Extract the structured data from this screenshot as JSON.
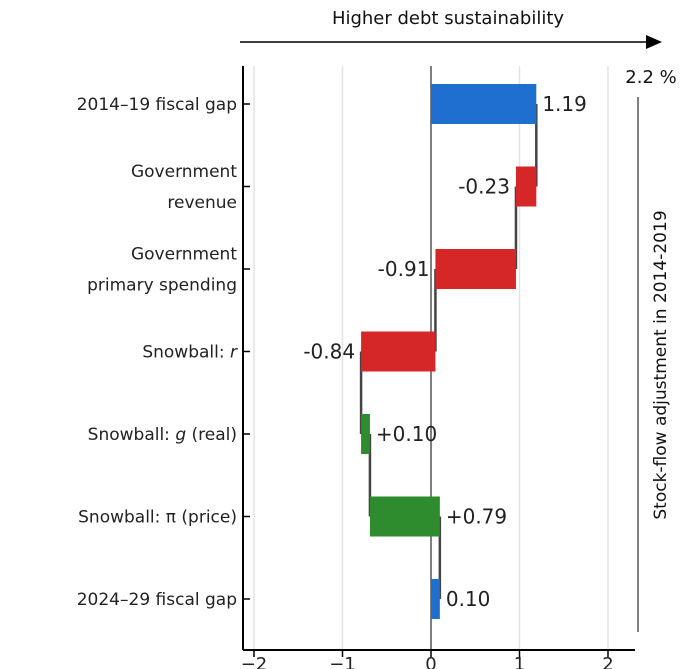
{
  "chart_data": {
    "type": "bar",
    "orientation": "horizontal-waterfall",
    "title": "Higher debt sustainability",
    "side_label": "Stock-flow adjustment in 2014-2019",
    "side_value_label": "2.2 %",
    "xlim": [
      -2.2,
      2.35
    ],
    "x_ticks": [
      -2,
      -1,
      0,
      1,
      2
    ],
    "x_tick_labels": [
      "−2",
      "−1",
      "0",
      "1",
      "2"
    ],
    "grid": "vertical",
    "categories": [
      {
        "lines": [
          "2014–19 fiscal gap"
        ],
        "italic": null
      },
      {
        "lines": [
          "Government",
          "revenue"
        ],
        "italic": null
      },
      {
        "lines": [
          "Government",
          "primary spending"
        ],
        "italic": null
      },
      {
        "lines": [
          "Snowball: r"
        ],
        "italic": "r"
      },
      {
        "lines": [
          "Snowball: g (real)"
        ],
        "italic": "g"
      },
      {
        "lines": [
          "Snowball: π (price)"
        ],
        "italic": null
      },
      {
        "lines": [
          "2024–29 fiscal gap"
        ],
        "italic": null
      }
    ],
    "bars": [
      {
        "start": 0.0,
        "end": 1.19,
        "value": 1.19,
        "label": "1.19",
        "color": "#1f6fd1"
      },
      {
        "start": 1.19,
        "end": 0.96,
        "value": -0.23,
        "label": "-0.23",
        "color": "#d62728"
      },
      {
        "start": 0.96,
        "end": 0.05,
        "value": -0.91,
        "label": "-0.91",
        "color": "#d62728"
      },
      {
        "start": 0.05,
        "end": -0.79,
        "value": -0.84,
        "label": "-0.84",
        "color": "#d62728"
      },
      {
        "start": -0.79,
        "end": -0.69,
        "value": 0.1,
        "label": "+0.10",
        "color": "#2e8b2e"
      },
      {
        "start": -0.69,
        "end": 0.1,
        "value": 0.79,
        "label": "+0.79",
        "color": "#2e8b2e"
      },
      {
        "start": 0.0,
        "end": 0.1,
        "value": 0.1,
        "label": "0.10",
        "color": "#1f6fd1"
      }
    ],
    "colors": {
      "total": "#1f6fd1",
      "negative": "#d62728",
      "positive": "#2e8b2e",
      "grid": "#e3e3e3"
    }
  }
}
